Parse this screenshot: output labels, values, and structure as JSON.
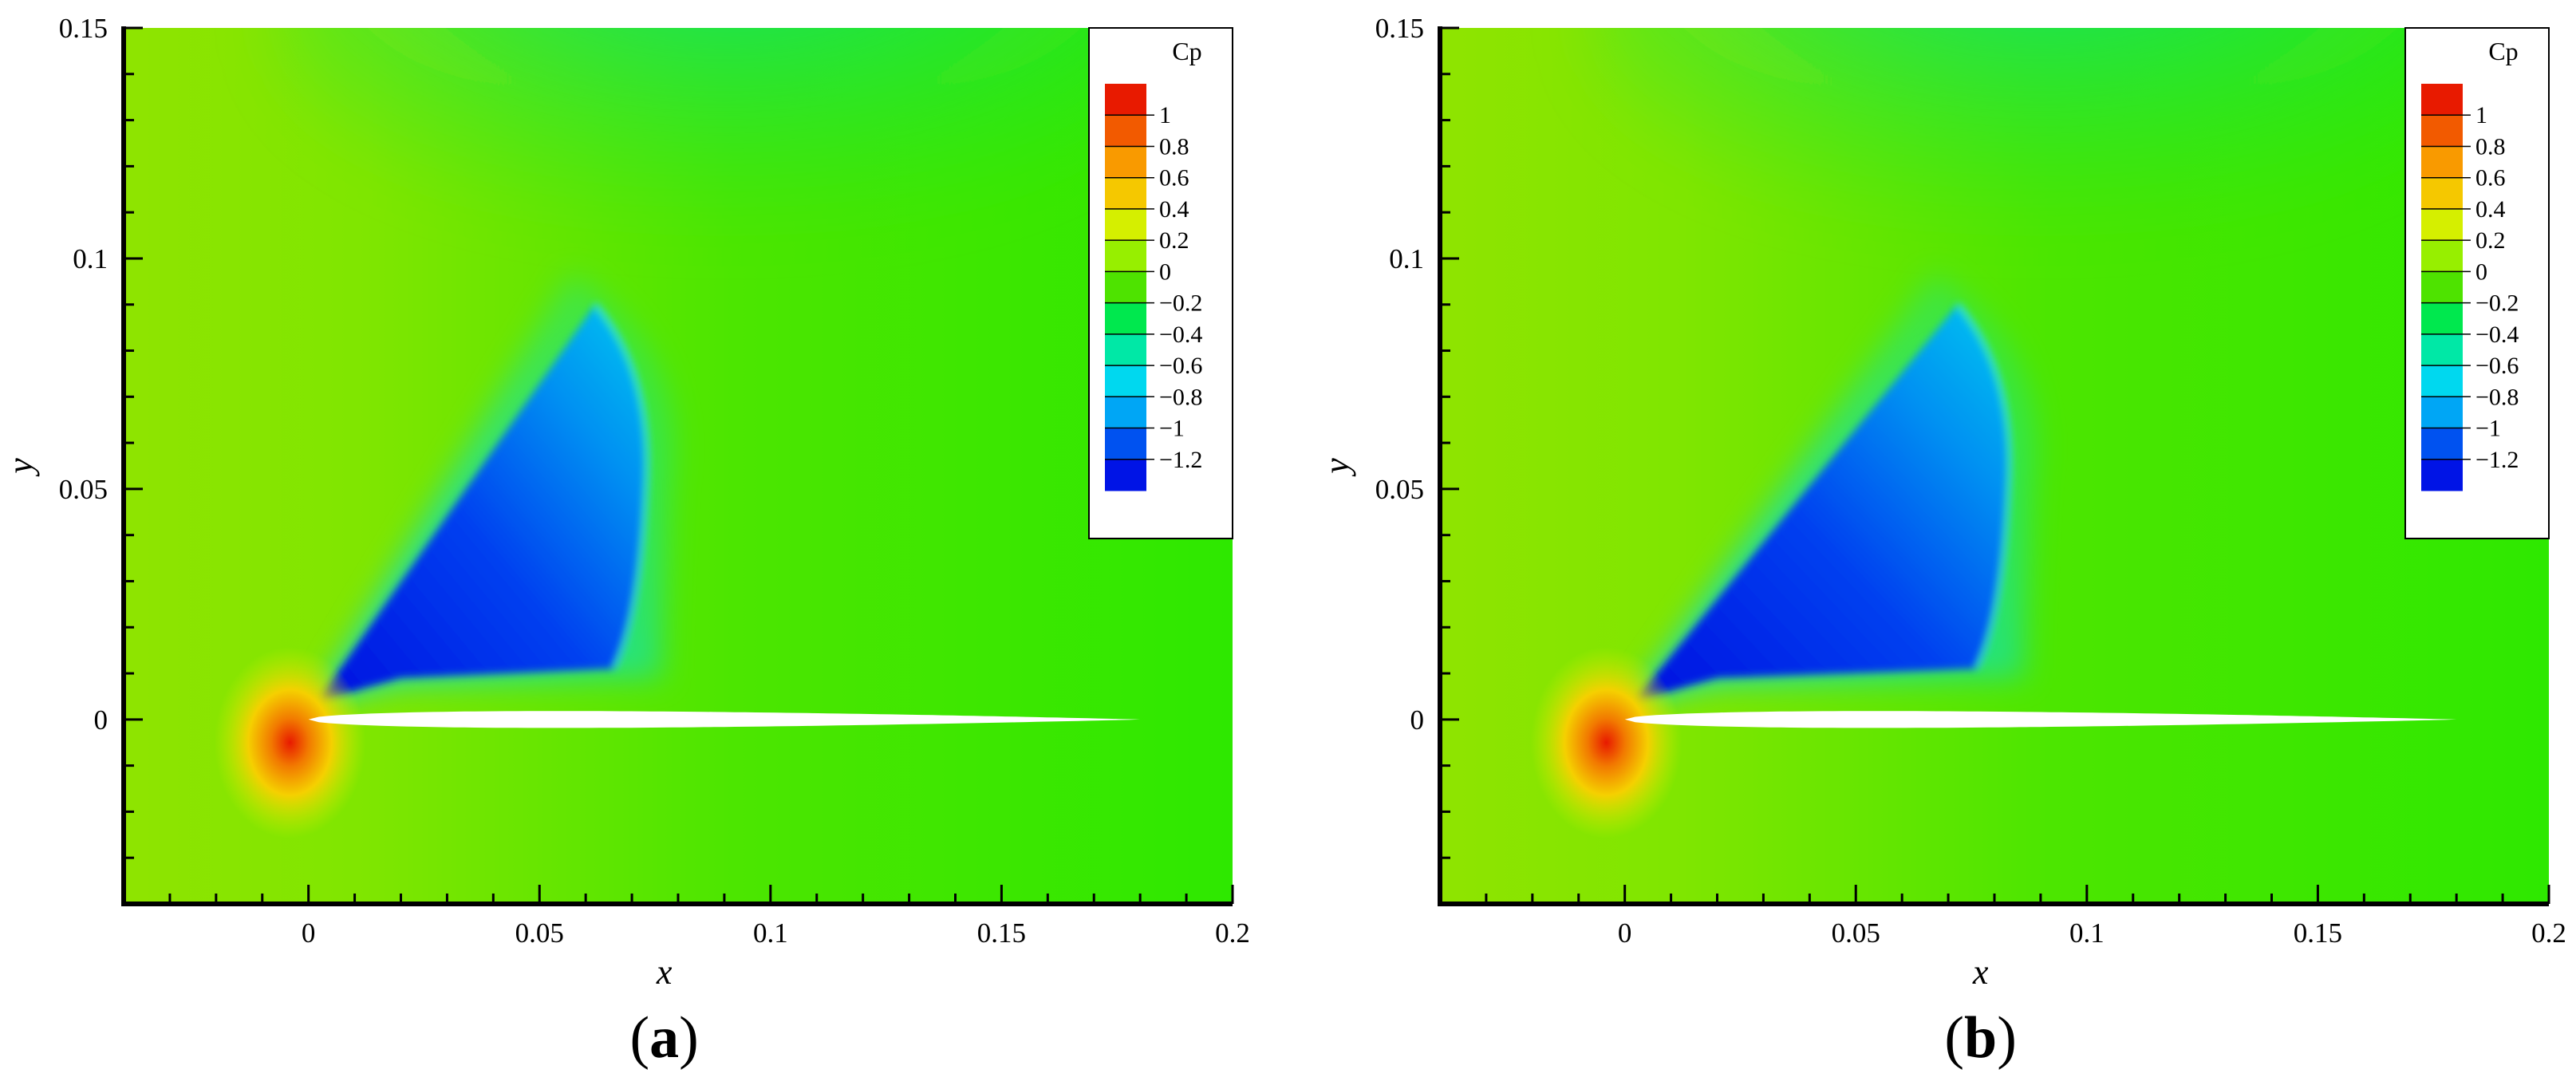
{
  "chart_data": [
    {
      "type": "heatmap",
      "panel": "(a)",
      "panel_letter": "a",
      "xlabel": "x",
      "ylabel": "y",
      "xlim": [
        -0.04,
        0.2
      ],
      "ylim": [
        -0.04,
        0.15
      ],
      "x_ticks": [
        "0",
        "0.05",
        "0.1",
        "0.15",
        "0.2"
      ],
      "x_tick_values": [
        0,
        0.05,
        0.1,
        0.15,
        0.2
      ],
      "y_ticks": [
        "0",
        "0.05",
        "0.1",
        "0.15"
      ],
      "y_tick_values": [
        0,
        0.05,
        0.1,
        0.15
      ],
      "legend": {
        "title": "Cp",
        "placement": "top-right",
        "levels": [
          "1",
          "0.8",
          "0.6",
          "0.4",
          "0.2",
          "0",
          "−0.2",
          "−0.4",
          "−0.6",
          "−0.8",
          "−1",
          "−1.2"
        ],
        "level_values": [
          1,
          0.8,
          0.6,
          0.4,
          0.2,
          0,
          -0.2,
          -0.4,
          -0.6,
          -0.8,
          -1,
          -1.2
        ],
        "colors": [
          "#e81a00",
          "#f25a00",
          "#f99a00",
          "#f5c800",
          "#d5ef00",
          "#97ef00",
          "#4ee300",
          "#00e84e",
          "#00e8a6",
          "#00d8ef",
          "#00a6f5",
          "#0052f0",
          "#0014e6"
        ]
      },
      "shock_x": 0.068,
      "airfoil": {
        "leading_edge_x": 0,
        "trailing_edge_x": 0.18,
        "max_thickness": 0.011
      }
    },
    {
      "type": "heatmap",
      "panel": "(b)",
      "panel_letter": "b",
      "xlabel": "x",
      "ylabel": "y",
      "xlim": [
        -0.04,
        0.2
      ],
      "ylim": [
        -0.04,
        0.15
      ],
      "x_ticks": [
        "0",
        "0.05",
        "0.1",
        "0.15",
        "0.2"
      ],
      "x_tick_values": [
        0,
        0.05,
        0.1,
        0.15,
        0.2
      ],
      "y_ticks": [
        "0",
        "0.05",
        "0.1",
        "0.15"
      ],
      "y_tick_values": [
        0,
        0.05,
        0.1,
        0.15
      ],
      "legend": {
        "title": "Cp",
        "placement": "top-right",
        "levels": [
          "1",
          "0.8",
          "0.6",
          "0.4",
          "0.2",
          "0",
          "−0.2",
          "−0.4",
          "−0.6",
          "−0.8",
          "−1",
          "−1.2"
        ],
        "level_values": [
          1,
          0.8,
          0.6,
          0.4,
          0.2,
          0,
          -0.2,
          -0.4,
          -0.6,
          -0.8,
          -1,
          -1.2
        ],
        "colors": [
          "#e81a00",
          "#f25a00",
          "#f99a00",
          "#f5c800",
          "#d5ef00",
          "#97ef00",
          "#4ee300",
          "#00e84e",
          "#00e8a6",
          "#00d8ef",
          "#00a6f5",
          "#0052f0",
          "#0014e6"
        ]
      },
      "shock_x": 0.078,
      "airfoil": {
        "leading_edge_x": 0,
        "trailing_edge_x": 0.18,
        "max_thickness": 0.011
      }
    }
  ]
}
